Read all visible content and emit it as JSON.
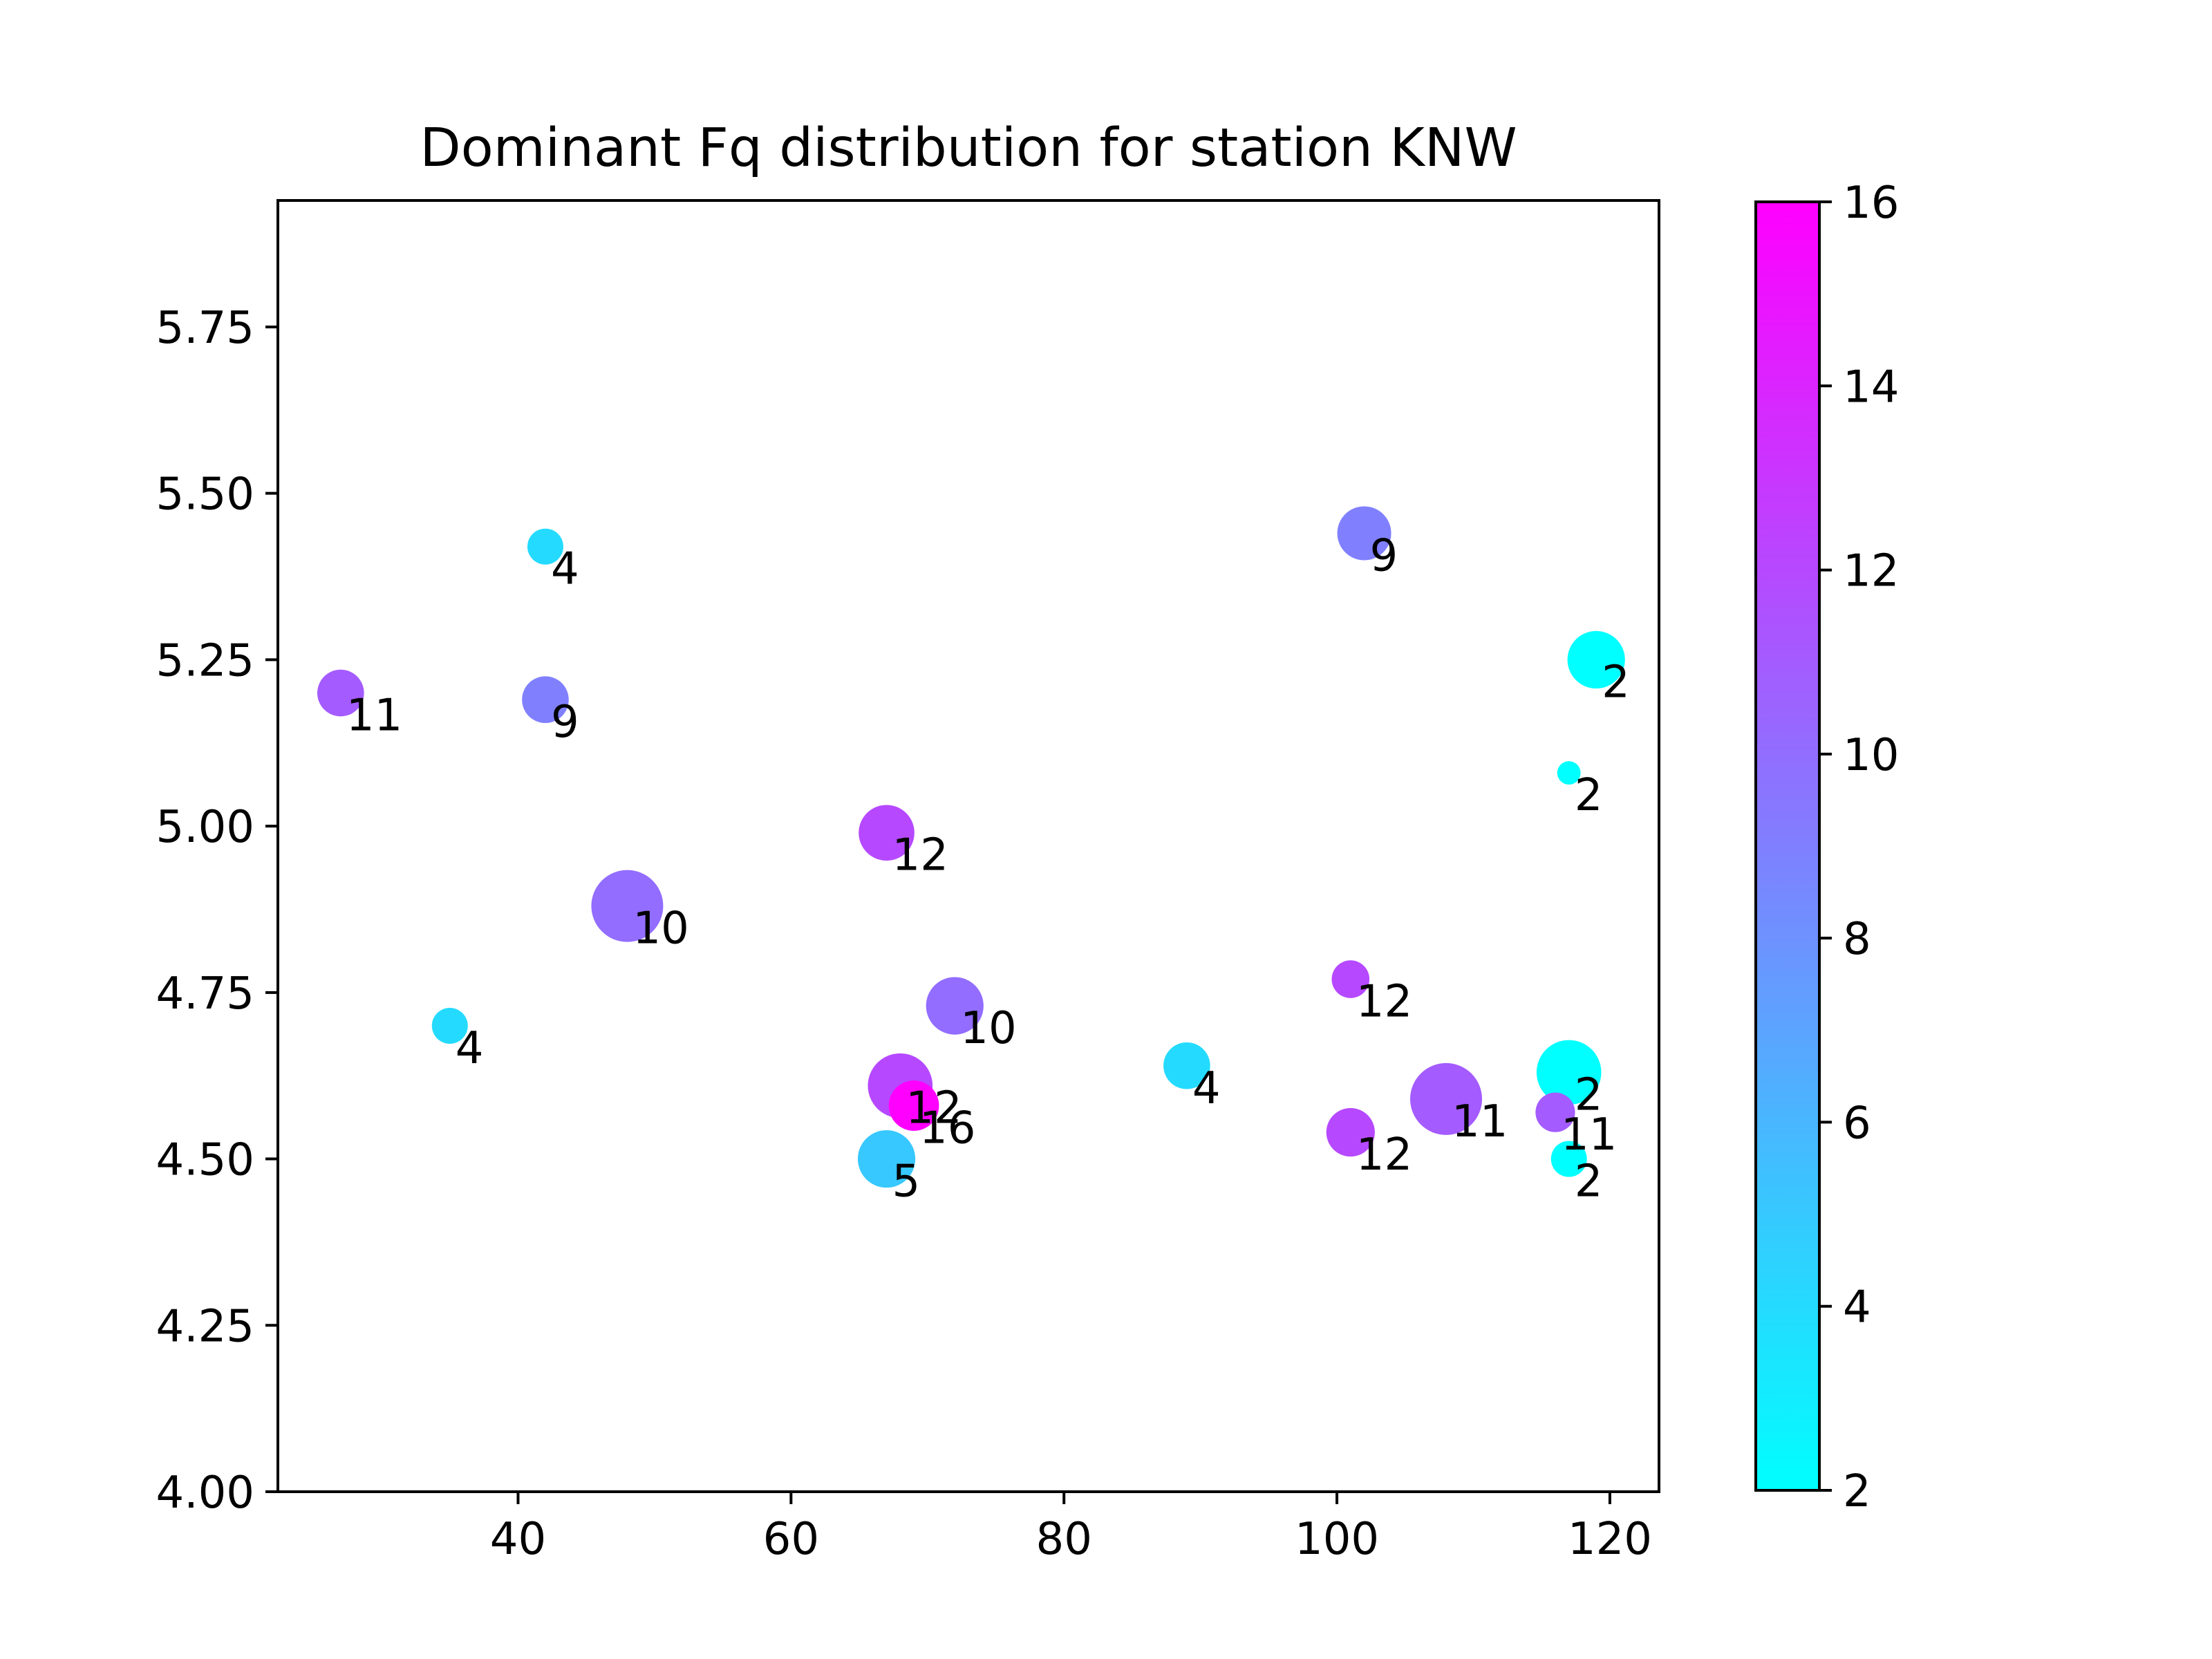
{
  "chart_data": {
    "type": "scatter",
    "title": "Dominant Fq distribution for station KNW",
    "xlabel": "",
    "ylabel": "",
    "xlim": [
      22.4,
      123.6
    ],
    "ylim": [
      4.0,
      5.94
    ],
    "x_ticks": [
      40,
      60,
      80,
      100,
      120
    ],
    "y_ticks": [
      4.0,
      4.25,
      4.5,
      4.75,
      5.0,
      5.25,
      5.5,
      5.75
    ],
    "x_tick_labels": [
      "40",
      "60",
      "80",
      "100",
      "120"
    ],
    "y_tick_labels": [
      "4.00",
      "4.25",
      "4.50",
      "4.75",
      "5.00",
      "5.25",
      "5.50",
      "5.75"
    ],
    "colormap": "cool",
    "colormap_start": "#00ffff",
    "colormap_end": "#ff00ff",
    "colorbar": {
      "min": 2,
      "max": 16,
      "ticks": [
        2,
        4,
        6,
        8,
        10,
        12,
        14,
        16
      ],
      "tick_labels": [
        "2",
        "4",
        "6",
        "8",
        "10",
        "12",
        "14",
        "16"
      ]
    },
    "grid": false,
    "legend": "none",
    "points": [
      {
        "x": 42,
        "y": 5.42,
        "value": 4,
        "label": "4",
        "size": 1.0
      },
      {
        "x": 102,
        "y": 5.44,
        "value": 9,
        "label": "9",
        "size": 1.5
      },
      {
        "x": 27,
        "y": 5.2,
        "value": 11,
        "label": "11",
        "size": 1.3
      },
      {
        "x": 42,
        "y": 5.19,
        "value": 9,
        "label": "9",
        "size": 1.3
      },
      {
        "x": 119,
        "y": 5.25,
        "value": 2,
        "label": "2",
        "size": 1.6
      },
      {
        "x": 117,
        "y": 5.08,
        "value": 2,
        "label": "2",
        "size": 0.65
      },
      {
        "x": 67,
        "y": 4.99,
        "value": 12,
        "label": "12",
        "size": 1.55
      },
      {
        "x": 48,
        "y": 4.88,
        "value": 10,
        "label": "10",
        "size": 2.0
      },
      {
        "x": 101,
        "y": 4.77,
        "value": 12,
        "label": "12",
        "size": 1.05
      },
      {
        "x": 35,
        "y": 4.7,
        "value": 4,
        "label": "4",
        "size": 1.0
      },
      {
        "x": 72,
        "y": 4.73,
        "value": 10,
        "label": "10",
        "size": 1.6
      },
      {
        "x": 89,
        "y": 4.64,
        "value": 4,
        "label": "4",
        "size": 1.3
      },
      {
        "x": 117,
        "y": 4.63,
        "value": 2,
        "label": "2",
        "size": 1.8
      },
      {
        "x": 68,
        "y": 4.61,
        "value": 12,
        "label": "12",
        "size": 1.8
      },
      {
        "x": 69,
        "y": 4.58,
        "value": 16,
        "label": "16",
        "size": 1.4
      },
      {
        "x": 108,
        "y": 4.59,
        "value": 11,
        "label": "11",
        "size": 2.0
      },
      {
        "x": 116,
        "y": 4.57,
        "value": 11,
        "label": "11",
        "size": 1.1
      },
      {
        "x": 101,
        "y": 4.54,
        "value": 12,
        "label": "12",
        "size": 1.35
      },
      {
        "x": 67,
        "y": 4.5,
        "value": 5,
        "label": "5",
        "size": 1.6
      },
      {
        "x": 117,
        "y": 4.5,
        "value": 2,
        "label": "2",
        "size": 1.0
      }
    ]
  }
}
